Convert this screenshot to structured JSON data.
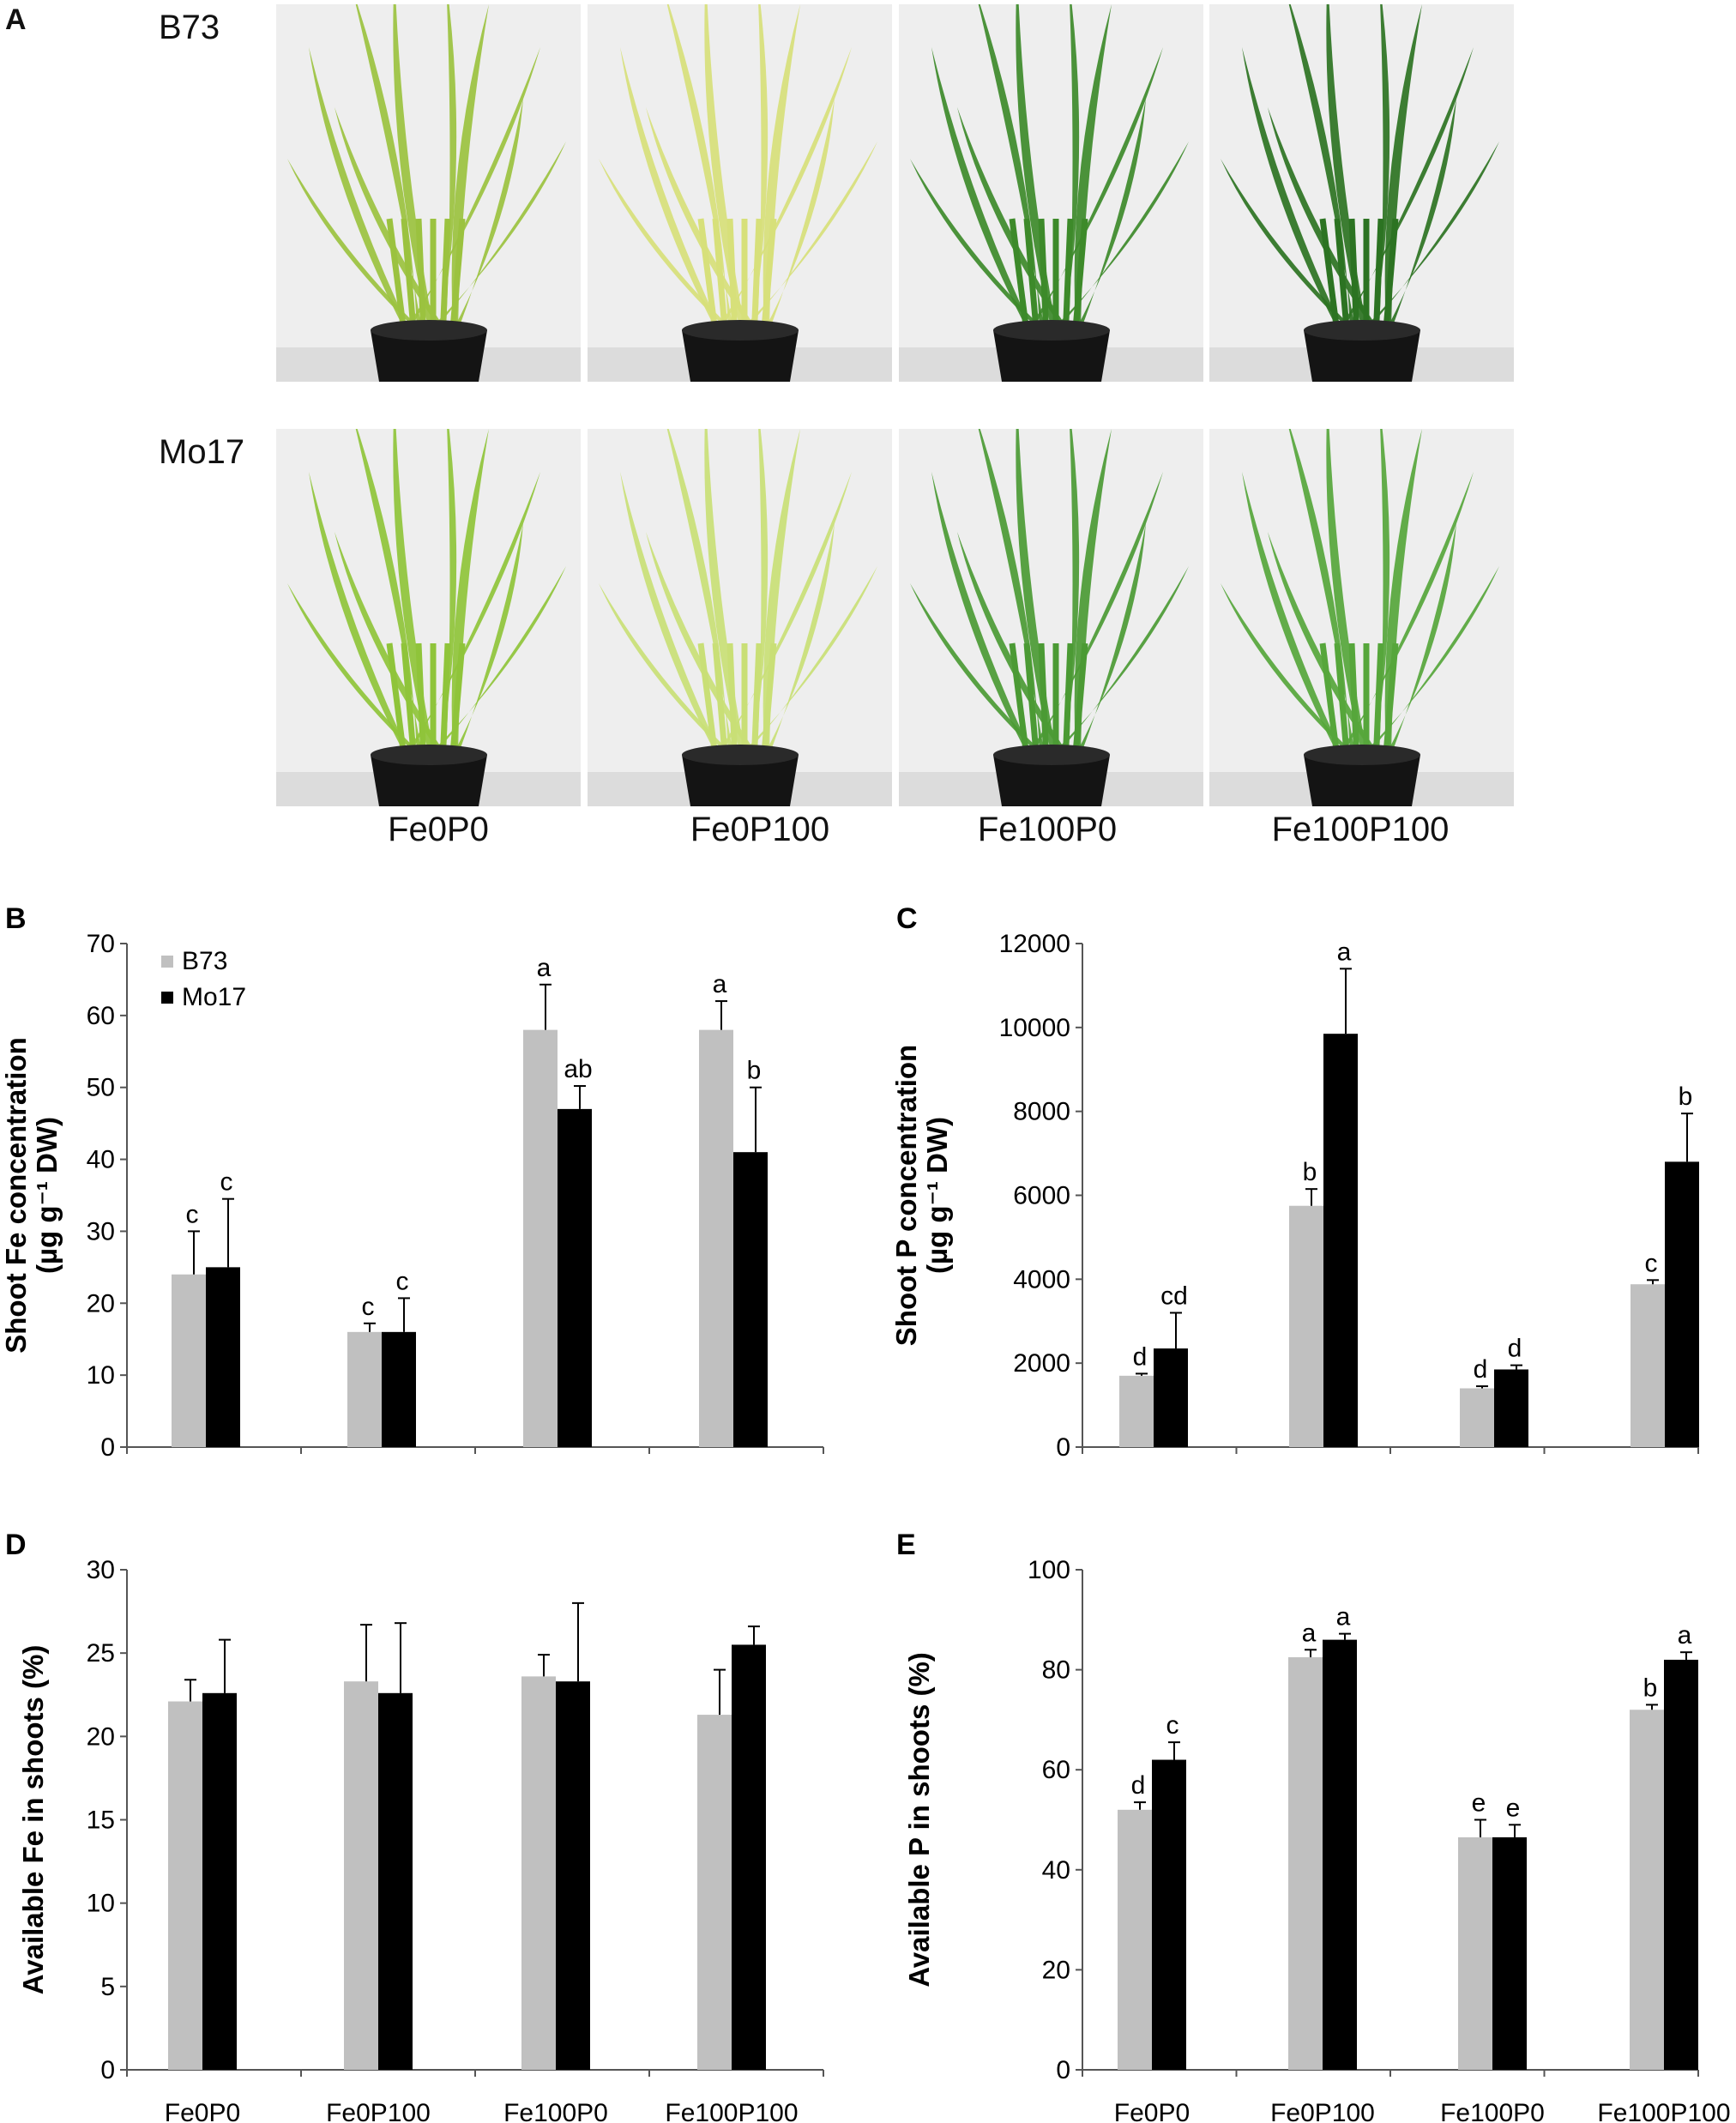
{
  "panel_a": {
    "letter": "A",
    "genotypes": [
      "B73",
      "Mo17"
    ],
    "treatments": [
      "Fe0P0",
      "Fe0P100",
      "Fe100P0",
      "Fe100P100"
    ],
    "photos": [
      {
        "genotype": "B73",
        "treatment": "Fe0P0",
        "leaf_color": "#9bc23f"
      },
      {
        "genotype": "B73",
        "treatment": "Fe0P100",
        "leaf_color": "#d7e07a"
      },
      {
        "genotype": "B73",
        "treatment": "Fe100P0",
        "leaf_color": "#3d8a2a"
      },
      {
        "genotype": "B73",
        "treatment": "Fe100P100",
        "leaf_color": "#2c7322"
      },
      {
        "genotype": "Mo17",
        "treatment": "Fe0P0",
        "leaf_color": "#8fc43a"
      },
      {
        "genotype": "Mo17",
        "treatment": "Fe0P100",
        "leaf_color": "#c9df76"
      },
      {
        "genotype": "Mo17",
        "treatment": "Fe100P0",
        "leaf_color": "#4b9a34"
      },
      {
        "genotype": "Mo17",
        "treatment": "Fe100P100",
        "leaf_color": "#56a63b"
      }
    ]
  },
  "colors": {
    "B73": "#c0c0c0",
    "Mo17": "#000000"
  },
  "chart_data": [
    {
      "panel": "B",
      "type": "bar",
      "ylabel_line1": "Shoot Fe concentration",
      "ylabel_line2": "(µg g⁻¹ DW)",
      "categories": [
        "Fe0P0",
        "Fe0P100",
        "Fe100P0",
        "Fe100P100"
      ],
      "show_categories": false,
      "ylim": [
        0,
        70
      ],
      "yticks": [
        "0",
        "10",
        "20",
        "30",
        "40",
        "50",
        "60",
        "70"
      ],
      "legend": [
        "B73",
        "Mo17"
      ],
      "legend_position": "top-left",
      "series": [
        {
          "name": "B73",
          "values": [
            24,
            16,
            58,
            58
          ],
          "errors": [
            6,
            1.2,
            6.3,
            4
          ],
          "letters": [
            "c",
            "c",
            "a",
            "a"
          ]
        },
        {
          "name": "Mo17",
          "values": [
            25,
            16,
            47,
            41
          ],
          "errors": [
            9.5,
            4.7,
            3.2,
            9
          ],
          "letters": [
            "c",
            "c",
            "ab",
            "b"
          ]
        }
      ]
    },
    {
      "panel": "C",
      "type": "bar",
      "ylabel_line1": "Shoot P concentration",
      "ylabel_line2": "(µg g⁻¹ DW)",
      "categories": [
        "Fe0P0",
        "Fe0P100",
        "Fe100P0",
        "Fe100P100"
      ],
      "show_categories": false,
      "ylim": [
        0,
        12000
      ],
      "yticks": [
        "0",
        "2000",
        "4000",
        "6000",
        "8000",
        "10000",
        "12000"
      ],
      "series": [
        {
          "name": "B73",
          "values": [
            1700,
            5750,
            1400,
            3880
          ],
          "errors": [
            50,
            400,
            50,
            100
          ],
          "letters": [
            "d",
            "b",
            "d",
            "c"
          ]
        },
        {
          "name": "Mo17",
          "values": [
            2350,
            9850,
            1850,
            6800
          ],
          "errors": [
            850,
            1550,
            100,
            1150
          ],
          "letters": [
            "cd",
            "a",
            "d",
            "b"
          ]
        }
      ]
    },
    {
      "panel": "D",
      "type": "bar",
      "ylabel_line1": "Available Fe in shoots (%)",
      "ylabel_line2": "",
      "categories": [
        "Fe0P0",
        "Fe0P100",
        "Fe100P0",
        "Fe100P100"
      ],
      "show_categories": true,
      "ylim": [
        0,
        30
      ],
      "yticks": [
        "0",
        "5",
        "10",
        "15",
        "20",
        "25",
        "30"
      ],
      "series": [
        {
          "name": "B73",
          "values": [
            22.1,
            23.3,
            23.6,
            21.3
          ],
          "errors": [
            1.3,
            3.4,
            1.3,
            2.7
          ],
          "letters": [
            "",
            "",
            "",
            ""
          ]
        },
        {
          "name": "Mo17",
          "values": [
            22.6,
            22.6,
            23.3,
            25.5
          ],
          "errors": [
            3.2,
            4.2,
            4.7,
            1.1
          ],
          "letters": [
            "",
            "",
            "",
            ""
          ]
        }
      ]
    },
    {
      "panel": "E",
      "type": "bar",
      "ylabel_line1": "Available P in shoots (%)",
      "ylabel_line2": "",
      "categories": [
        "Fe0P0",
        "Fe0P100",
        "Fe100P0",
        "Fe100P100"
      ],
      "show_categories": true,
      "ylim": [
        0,
        100
      ],
      "yticks": [
        "0",
        "20",
        "40",
        "60",
        "80",
        "100"
      ],
      "series": [
        {
          "name": "B73",
          "values": [
            52,
            82.5,
            46.5,
            72
          ],
          "errors": [
            1.5,
            1.5,
            3.5,
            1
          ],
          "letters": [
            "d",
            "a",
            "e",
            "b"
          ]
        },
        {
          "name": "Mo17",
          "values": [
            62,
            86,
            46.5,
            82
          ],
          "errors": [
            3.5,
            1.2,
            2.5,
            1.5
          ],
          "letters": [
            "c",
            "a",
            "e",
            "a"
          ]
        }
      ]
    }
  ]
}
